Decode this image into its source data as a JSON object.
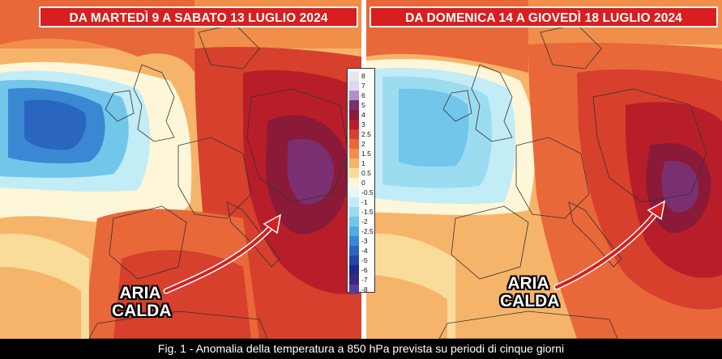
{
  "panels": [
    {
      "title": "DA MARTEDÌ 9 A SABATO 13 LUGLIO 2024",
      "callout_line1": "ARIA",
      "callout_line2": "CALDA"
    },
    {
      "title": "DA DOMENICA 14 A GIOVEDÌ 18 LUGLIO 2024",
      "callout_line1": "ARIA",
      "callout_line2": "CALDA"
    }
  ],
  "legend": {
    "labels": [
      "8",
      "7",
      "6",
      "5",
      "4",
      "3",
      "2.5",
      "2",
      "1.5",
      "1",
      "0.5",
      "0",
      "-0.5",
      "-1",
      "-1.5",
      "-2",
      "-2.5",
      "-3",
      "-4",
      "-5",
      "-6",
      "-7",
      "-8"
    ],
    "colors": [
      "#e8e8e8",
      "#e0d8f0",
      "#b090c8",
      "#7a3070",
      "#8a1a38",
      "#b81e2a",
      "#d6402c",
      "#e8683a",
      "#f08e4a",
      "#f6b46a",
      "#fadc9a",
      "#fdf6d8",
      "#e6f6fb",
      "#c2ecf6",
      "#9cdcf0",
      "#72c6ea",
      "#55a8e0",
      "#3a88d4",
      "#2a66c0",
      "#2046a6",
      "#1c2a8e",
      "#3a2880",
      "#5a3a98"
    ]
  },
  "caption": "Fig. 1 - Anomalia della temperatura a 850 hPa prevista su periodi di cinque giorni",
  "colors": {
    "banner": "#d81e1e",
    "arrow": "#d81e1e"
  }
}
